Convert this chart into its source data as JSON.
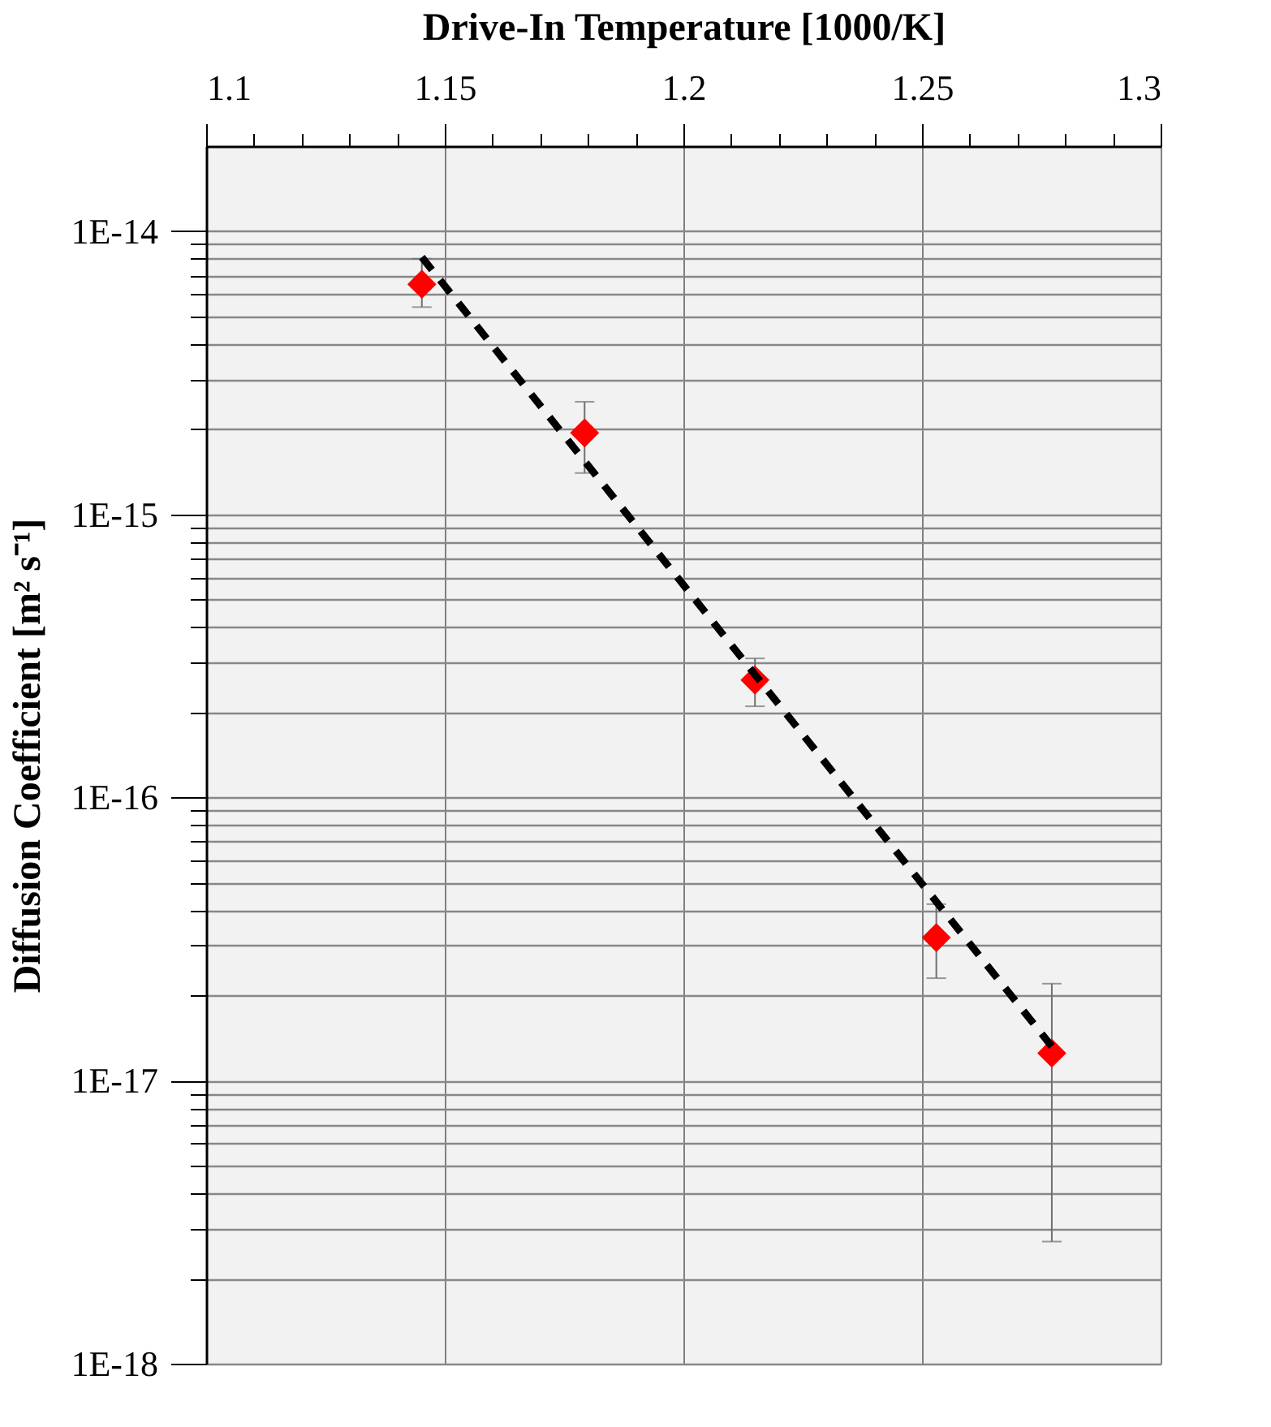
{
  "chart_data": {
    "type": "scatter",
    "xlabel": "Drive-In Temperature [1000/K]",
    "ylabel": "Diffusion Coefficient [m² s⁻¹]",
    "x": [
      1.1452,
      1.1793,
      1.215,
      1.253,
      1.2772
    ],
    "series": [
      {
        "color": "#ff0000",
        "marker": "diamond",
        "values": [
          6.5e-15,
          1.94e-15,
          2.6e-16,
          3.2e-17,
          1.25e-17
        ],
        "errors": [
          [
            5.4e-15,
            8e-15
          ],
          [
            1.4e-15,
            2.5e-15
          ],
          [
            2.1e-16,
            3.1e-16
          ],
          [
            2.3e-17,
            4.2e-17
          ],
          [
            2.7e-18,
            2.2e-17
          ]
        ]
      },
      {
        "type": "line",
        "color": "#000000",
        "line_style": "dashed",
        "marker": "none",
        "x": [
          1.1452,
          1.278
        ],
        "values": [
          8.1e-15,
          1.27e-17
        ]
      }
    ],
    "xlim": [
      1.1,
      1.3
    ],
    "xticks": [
      1.1,
      {
        "value": 1.11,
        "label": null
      },
      {
        "value": 1.12,
        "label": null
      },
      {
        "value": 1.13,
        "label": null
      },
      {
        "value": 1.14,
        "label": null
      },
      1.15,
      {
        "value": 1.16,
        "label": null
      },
      {
        "value": 1.17,
        "label": null
      },
      {
        "value": 1.18,
        "label": null
      },
      {
        "value": 1.19,
        "label": null
      },
      1.2,
      {
        "value": 1.21,
        "label": null
      },
      {
        "value": 1.22,
        "label": null
      },
      {
        "value": 1.23,
        "label": null
      },
      {
        "value": 1.24,
        "label": null
      },
      1.25,
      {
        "value": 1.26,
        "label": null
      },
      {
        "value": 1.27,
        "label": null
      },
      {
        "value": 1.28,
        "label": null
      },
      {
        "value": 1.29,
        "label": null
      },
      1.3
    ],
    "ylim": [
      1e-18,
      2e-14
    ],
    "yticks": [
      {
        "value": 1e-18,
        "label": "1E-18"
      },
      {
        "value": 2e-18,
        "label": null
      },
      {
        "value": 3e-18,
        "label": null
      },
      {
        "value": 4e-18,
        "label": null
      },
      {
        "value": 5e-18,
        "label": null
      },
      {
        "value": 6e-18,
        "label": null
      },
      {
        "value": 7e-18,
        "label": null
      },
      {
        "value": 8e-18,
        "label": null
      },
      {
        "value": 9e-18,
        "label": null
      },
      {
        "value": 1e-17,
        "label": "1E-17"
      },
      {
        "value": 2e-17,
        "label": null
      },
      {
        "value": 3e-17,
        "label": null
      },
      {
        "value": 4e-17,
        "label": null
      },
      {
        "value": 5e-17,
        "label": null
      },
      {
        "value": 6e-17,
        "label": null
      },
      {
        "value": 7e-17,
        "label": null
      },
      {
        "value": 8e-17,
        "label": null
      },
      {
        "value": 9e-17,
        "label": null
      },
      {
        "value": 1e-16,
        "label": "1E-16"
      },
      {
        "value": 2e-16,
        "label": null
      },
      {
        "value": 3e-16,
        "label": null
      },
      {
        "value": 4e-16,
        "label": null
      },
      {
        "value": 5e-16,
        "label": null
      },
      {
        "value": 6e-16,
        "label": null
      },
      {
        "value": 7e-16,
        "label": null
      },
      {
        "value": 8e-16,
        "label": null
      },
      {
        "value": 9e-16,
        "label": null
      },
      {
        "value": 1e-15,
        "label": "1E-15"
      },
      {
        "value": 2e-15,
        "label": null
      },
      {
        "value": 3e-15,
        "label": null
      },
      {
        "value": 4e-15,
        "label": null
      },
      {
        "value": 5e-15,
        "label": null
      },
      {
        "value": 6e-15,
        "label": null
      },
      {
        "value": 7e-15,
        "label": null
      },
      {
        "value": 8e-15,
        "label": null
      },
      {
        "value": 9e-15,
        "label": null
      },
      {
        "value": 1e-14,
        "label": "1E-14"
      }
    ],
    "log": "y",
    "grid": true
  }
}
